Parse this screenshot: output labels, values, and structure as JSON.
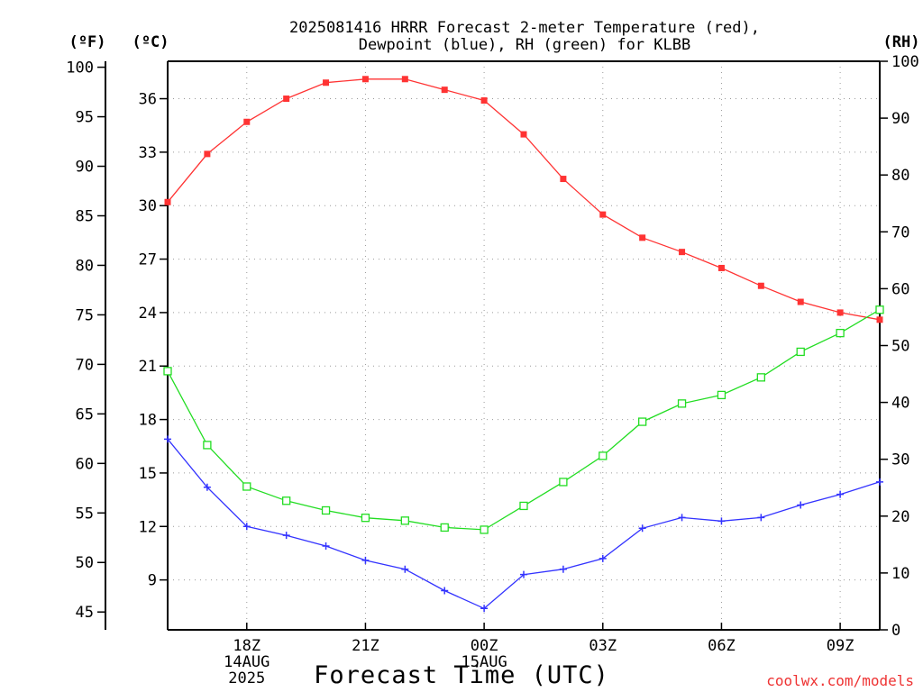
{
  "title": {
    "line1": "2025081416 HRRR Forecast 2-meter Temperature (red),",
    "line2": "Dewpoint (blue), RH (green) for KLBB"
  },
  "axes": {
    "f_label": "(ºF)",
    "c_label": "(ºC)",
    "rh_label": "(RH)",
    "x_label": "Forecast Time (UTC)"
  },
  "credit": "coolwx.com/models",
  "chart_data": {
    "type": "line",
    "title": "2025081416 HRRR Forecast 2-meter Temperature (red), Dewpoint (blue), RH (green) for KLBB",
    "xlabel": "Forecast Time (UTC)",
    "x": [
      "16Z",
      "17Z",
      "18Z",
      "19Z",
      "20Z",
      "21Z",
      "22Z",
      "23Z",
      "00Z",
      "01Z",
      "02Z",
      "03Z",
      "04Z",
      "05Z",
      "06Z",
      "07Z",
      "08Z",
      "09Z",
      "10Z"
    ],
    "x_tick_labels": [
      {
        "index": 2,
        "lines": [
          "18Z",
          "14AUG",
          "2025"
        ]
      },
      {
        "index": 5,
        "lines": [
          "21Z"
        ]
      },
      {
        "index": 8,
        "lines": [
          "00Z",
          "15AUG"
        ]
      },
      {
        "index": 11,
        "lines": [
          "03Z"
        ]
      },
      {
        "index": 14,
        "lines": [
          "06Z"
        ]
      },
      {
        "index": 17,
        "lines": [
          "09Z"
        ]
      }
    ],
    "left_axis_celsius": {
      "label": "(ºC)",
      "ylim": [
        6.2,
        38.1
      ],
      "ticks": [
        9,
        12,
        15,
        18,
        21,
        24,
        27,
        30,
        33,
        36
      ]
    },
    "left_axis_fahrenheit": {
      "label": "(ºF)",
      "ylim": [
        43.2,
        100.6
      ],
      "ticks": [
        45,
        50,
        55,
        60,
        65,
        70,
        75,
        80,
        85,
        90,
        95,
        100
      ]
    },
    "right_axis_rh": {
      "label": "(RH)",
      "ylim": [
        0,
        100
      ],
      "ticks": [
        0,
        10,
        20,
        30,
        40,
        50,
        60,
        70,
        80,
        90,
        100
      ]
    },
    "grid": true,
    "series": [
      {
        "name": "Temperature",
        "axis": "celsius",
        "color": "#ff3333",
        "marker": "filled-square",
        "values": [
          30.2,
          32.9,
          34.7,
          36.0,
          36.9,
          37.1,
          37.1,
          36.5,
          35.9,
          34.0,
          31.5,
          29.5,
          28.2,
          27.4,
          26.5,
          25.5,
          24.6,
          24.0,
          23.6
        ]
      },
      {
        "name": "Dewpoint",
        "axis": "celsius",
        "color": "#3333ff",
        "marker": "plus",
        "values": [
          16.9,
          14.2,
          12.0,
          11.5,
          10.9,
          10.1,
          9.6,
          8.4,
          7.4,
          9.3,
          9.6,
          10.2,
          11.9,
          12.5,
          12.3,
          12.5,
          13.2,
          13.8,
          14.5
        ]
      },
      {
        "name": "RH",
        "axis": "rh",
        "color": "#22dd22",
        "marker": "open-square",
        "values": [
          45.5,
          32.5,
          25.2,
          22.7,
          21.0,
          19.7,
          19.2,
          18.0,
          17.6,
          21.8,
          26.0,
          30.6,
          36.6,
          39.8,
          41.3,
          44.4,
          48.9,
          52.2,
          56.3
        ]
      }
    ]
  }
}
